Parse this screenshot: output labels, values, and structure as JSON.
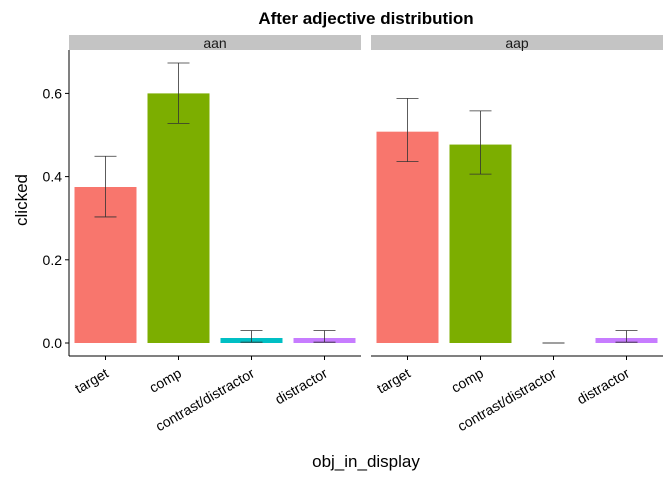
{
  "chart_data": {
    "type": "bar",
    "title": "After adjective distribution",
    "xlabel": "obj_in_display",
    "ylabel": "clicked",
    "ylim": [
      0,
      0.7
    ],
    "yticks": [
      "0.0",
      "0.2",
      "0.4",
      "0.6"
    ],
    "grid": false,
    "categories": [
      "target",
      "comp",
      "contrast/distractor",
      "distractor"
    ],
    "colors": [
      "#F8766D",
      "#7CAE00",
      "#00BFC4",
      "#C77CFF"
    ],
    "facets": [
      {
        "label": "aan",
        "values": [
          0.375,
          0.6,
          0.012,
          0.012
        ],
        "ci_low": [
          0.303,
          0.528,
          0.002,
          0.002
        ],
        "ci_high": [
          0.449,
          0.673,
          0.03,
          0.03
        ]
      },
      {
        "label": "aap",
        "values": [
          0.508,
          0.477,
          0.0,
          0.012
        ],
        "ci_low": [
          0.436,
          0.406,
          0.0,
          0.002
        ],
        "ci_high": [
          0.588,
          0.558,
          0.0,
          0.03
        ]
      }
    ]
  }
}
